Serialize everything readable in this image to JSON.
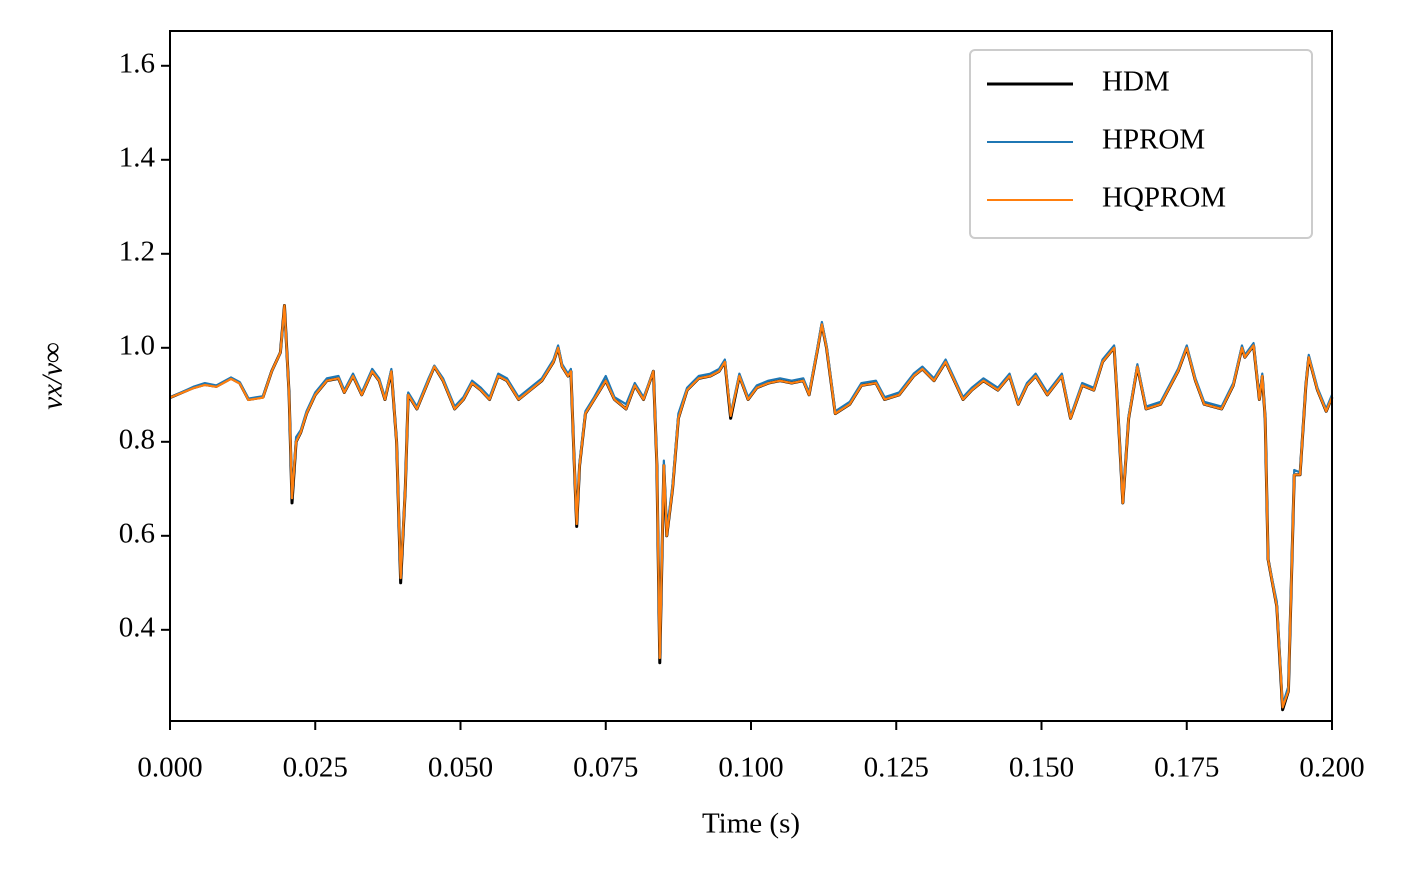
{
  "chart_data": {
    "type": "line",
    "xlabel": "Time (s)",
    "ylabel": "vx/v∞",
    "xlim": [
      0,
      0.2
    ],
    "ylim": [
      0.206,
      1.674
    ],
    "xticks": [
      {
        "value": 0,
        "label": "0.000"
      },
      {
        "value": 0.025,
        "label": "0.025"
      },
      {
        "value": 0.05,
        "label": "0.050"
      },
      {
        "value": 0.075,
        "label": "0.075"
      },
      {
        "value": 0.1,
        "label": "0.100"
      },
      {
        "value": 0.125,
        "label": "0.125"
      },
      {
        "value": 0.15,
        "label": "0.150"
      },
      {
        "value": 0.175,
        "label": "0.175"
      },
      {
        "value": 0.2,
        "label": "0.200"
      }
    ],
    "yticks": [
      0.4,
      0.6,
      0.8,
      {
        "value": 1.0,
        "label": "1.0"
      },
      1.2,
      1.4,
      1.6
    ],
    "legend": "upper right",
    "grid": false,
    "x": [
      0,
      0.004,
      0.006,
      0.008,
      0.0105,
      0.012,
      0.0135,
      0.016,
      0.0175,
      0.019,
      0.0197,
      0.0205,
      0.021,
      0.0217,
      0.0225,
      0.0235,
      0.025,
      0.027,
      0.029,
      0.03,
      0.0315,
      0.033,
      0.0348,
      0.036,
      0.037,
      0.0381,
      0.039,
      0.0397,
      0.0405,
      0.041,
      0.0425,
      0.0445,
      0.0455,
      0.047,
      0.049,
      0.0505,
      0.052,
      0.0535,
      0.055,
      0.0565,
      0.058,
      0.06,
      0.062,
      0.064,
      0.066,
      0.0668,
      0.0675,
      0.0685,
      0.069,
      0.0695,
      0.07,
      0.0705,
      0.0715,
      0.073,
      0.075,
      0.0765,
      0.0785,
      0.08,
      0.0815,
      0.0832,
      0.0838,
      0.0843,
      0.085,
      0.0855,
      0.0865,
      0.0875,
      0.089,
      0.091,
      0.093,
      0.0945,
      0.0955,
      0.0965,
      0.098,
      0.0995,
      0.101,
      0.103,
      0.105,
      0.107,
      0.109,
      0.11,
      0.1115,
      0.1122,
      0.113,
      0.1145,
      0.117,
      0.119,
      0.1215,
      0.123,
      0.1255,
      0.128,
      0.1295,
      0.1315,
      0.1335,
      0.135,
      0.1365,
      0.138,
      0.14,
      0.1425,
      0.1445,
      0.146,
      0.1475,
      0.149,
      0.151,
      0.1535,
      0.155,
      0.157,
      0.159,
      0.1605,
      0.1625,
      0.163,
      0.164,
      0.165,
      0.1665,
      0.168,
      0.1705,
      0.1735,
      0.175,
      0.1765,
      0.178,
      0.181,
      0.183,
      0.1845,
      0.185,
      0.1865,
      0.1875,
      0.188,
      0.1885,
      0.189,
      0.1905,
      0.1915,
      0.1925,
      0.1935,
      0.1945,
      0.1955,
      0.196,
      0.1975,
      0.199,
      0.2
    ],
    "series": [
      {
        "name": "HDM",
        "color": "#000000",
        "values": [
          0.894,
          0.915,
          0.922,
          0.918,
          0.935,
          0.925,
          0.89,
          0.895,
          0.95,
          0.99,
          1.09,
          0.9,
          0.67,
          0.8,
          0.82,
          0.86,
          0.9,
          0.93,
          0.935,
          0.905,
          0.94,
          0.9,
          0.95,
          0.93,
          0.89,
          0.95,
          0.8,
          0.5,
          0.7,
          0.9,
          0.87,
          0.93,
          0.96,
          0.93,
          0.87,
          0.89,
          0.925,
          0.91,
          0.89,
          0.94,
          0.93,
          0.89,
          0.91,
          0.93,
          0.97,
          1.0,
          0.96,
          0.94,
          0.95,
          0.78,
          0.62,
          0.75,
          0.86,
          0.89,
          0.93,
          0.89,
          0.87,
          0.92,
          0.89,
          0.95,
          0.75,
          0.33,
          0.75,
          0.6,
          0.7,
          0.85,
          0.91,
          0.935,
          0.94,
          0.95,
          0.97,
          0.85,
          0.94,
          0.89,
          0.915,
          0.925,
          0.93,
          0.925,
          0.93,
          0.9,
          1.0,
          1.05,
          1.0,
          0.86,
          0.88,
          0.92,
          0.925,
          0.89,
          0.9,
          0.94,
          0.955,
          0.93,
          0.97,
          0.93,
          0.89,
          0.91,
          0.93,
          0.91,
          0.94,
          0.88,
          0.92,
          0.94,
          0.9,
          0.94,
          0.85,
          0.92,
          0.91,
          0.97,
          1.0,
          0.9,
          0.67,
          0.85,
          0.96,
          0.87,
          0.88,
          0.95,
          1.0,
          0.93,
          0.88,
          0.87,
          0.92,
          1.0,
          0.98,
          1.005,
          0.89,
          0.94,
          0.85,
          0.55,
          0.45,
          0.23,
          0.27,
          0.73,
          0.73,
          0.92,
          0.98,
          0.91,
          0.865,
          0.895
        ]
      },
      {
        "name": "HPROM",
        "color": "#1f77b4",
        "values": [
          0.894,
          0.917,
          0.925,
          0.92,
          0.937,
          0.927,
          0.892,
          0.897,
          0.95,
          0.99,
          1.08,
          0.9,
          0.68,
          0.81,
          0.825,
          0.865,
          0.905,
          0.935,
          0.94,
          0.91,
          0.945,
          0.905,
          0.955,
          0.935,
          0.895,
          0.955,
          0.8,
          0.51,
          0.7,
          0.905,
          0.875,
          0.935,
          0.962,
          0.935,
          0.875,
          0.895,
          0.93,
          0.915,
          0.895,
          0.945,
          0.935,
          0.895,
          0.915,
          0.935,
          0.975,
          1.005,
          0.965,
          0.945,
          0.955,
          0.78,
          0.63,
          0.755,
          0.865,
          0.895,
          0.94,
          0.895,
          0.88,
          0.925,
          0.895,
          0.95,
          0.76,
          0.34,
          0.76,
          0.61,
          0.71,
          0.86,
          0.915,
          0.94,
          0.945,
          0.955,
          0.975,
          0.86,
          0.945,
          0.895,
          0.92,
          0.93,
          0.935,
          0.93,
          0.935,
          0.905,
          1.005,
          1.055,
          1.005,
          0.865,
          0.885,
          0.925,
          0.93,
          0.895,
          0.905,
          0.945,
          0.96,
          0.935,
          0.975,
          0.935,
          0.895,
          0.915,
          0.935,
          0.915,
          0.945,
          0.885,
          0.925,
          0.945,
          0.905,
          0.945,
          0.855,
          0.925,
          0.915,
          0.975,
          1.005,
          0.905,
          0.675,
          0.855,
          0.965,
          0.875,
          0.885,
          0.955,
          1.005,
          0.935,
          0.885,
          0.875,
          0.925,
          1.005,
          0.985,
          1.01,
          0.895,
          0.945,
          0.855,
          0.55,
          0.46,
          0.24,
          0.28,
          0.74,
          0.735,
          0.925,
          0.985,
          0.915,
          0.87,
          0.9
        ]
      },
      {
        "name": "HQPROM",
        "color": "#ff7f0e",
        "values": [
          0.894,
          0.914,
          0.921,
          0.917,
          0.934,
          0.924,
          0.889,
          0.894,
          0.95,
          0.99,
          1.09,
          0.9,
          0.68,
          0.8,
          0.82,
          0.86,
          0.9,
          0.93,
          0.935,
          0.905,
          0.94,
          0.9,
          0.95,
          0.93,
          0.89,
          0.95,
          0.8,
          0.51,
          0.7,
          0.9,
          0.87,
          0.93,
          0.96,
          0.93,
          0.87,
          0.89,
          0.925,
          0.91,
          0.89,
          0.94,
          0.93,
          0.89,
          0.91,
          0.93,
          0.97,
          1.0,
          0.96,
          0.94,
          0.95,
          0.78,
          0.625,
          0.75,
          0.86,
          0.89,
          0.93,
          0.89,
          0.87,
          0.92,
          0.89,
          0.95,
          0.75,
          0.34,
          0.75,
          0.6,
          0.7,
          0.85,
          0.91,
          0.935,
          0.94,
          0.95,
          0.97,
          0.855,
          0.94,
          0.89,
          0.915,
          0.925,
          0.93,
          0.925,
          0.93,
          0.9,
          1.0,
          1.05,
          1.0,
          0.86,
          0.88,
          0.92,
          0.925,
          0.89,
          0.9,
          0.94,
          0.955,
          0.93,
          0.97,
          0.93,
          0.89,
          0.91,
          0.93,
          0.91,
          0.94,
          0.88,
          0.92,
          0.94,
          0.9,
          0.94,
          0.85,
          0.92,
          0.91,
          0.97,
          1.0,
          0.9,
          0.67,
          0.85,
          0.96,
          0.87,
          0.88,
          0.95,
          1.0,
          0.93,
          0.88,
          0.87,
          0.92,
          1.0,
          0.98,
          1.005,
          0.89,
          0.94,
          0.85,
          0.55,
          0.45,
          0.235,
          0.27,
          0.73,
          0.73,
          0.92,
          0.98,
          0.91,
          0.865,
          0.895
        ]
      }
    ]
  }
}
